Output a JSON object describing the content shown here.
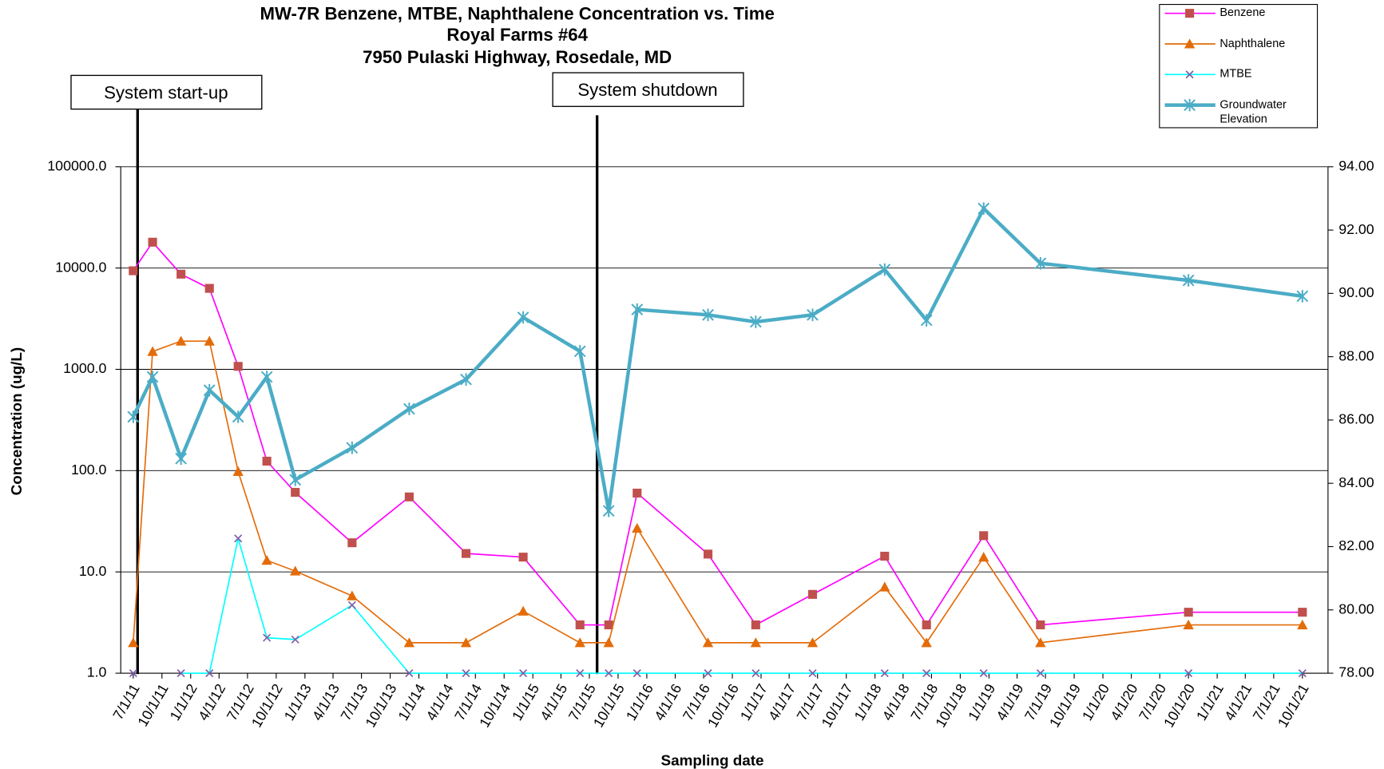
{
  "chart_data": {
    "type": "line",
    "title": [
      "MW-7R Benzene, MTBE, Naphthalene Concentration vs. Time",
      "Royal Farms #64",
      "7950 Pulaski Highway, Rosedale, MD"
    ],
    "xlabel": "Sampling date",
    "ylabel": "Concentration (ug/L)",
    "annotations": [
      "System start-up",
      "System shutdown"
    ],
    "y_scale": "log",
    "grid": true,
    "legend": "top-right",
    "xlim": [
      "5/22/11",
      "12/22/21"
    ],
    "xticks": [
      "7/1/11",
      "10/1/11",
      "1/1/12",
      "4/1/12",
      "7/1/12",
      "10/1/12",
      "1/1/13",
      "4/1/13",
      "7/1/13",
      "10/1/13",
      "1/1/14",
      "4/1/14",
      "7/1/14",
      "10/1/14",
      "1/1/15",
      "4/1/15",
      "7/1/15",
      "10/1/15",
      "1/1/16",
      "4/1/16",
      "7/1/16",
      "10/1/16",
      "1/1/17",
      "4/1/17",
      "7/1/17",
      "10/1/17",
      "1/1/18",
      "4/1/18",
      "7/1/18",
      "10/1/18",
      "1/1/19",
      "4/1/19",
      "7/1/19",
      "10/1/19",
      "1/1/20",
      "4/1/20",
      "7/1/20",
      "10/1/20",
      "1/1/21",
      "4/1/21",
      "7/1/21",
      "10/1/21"
    ],
    "ylim": [
      1,
      100000
    ],
    "yticks": [
      {
        "value": 1,
        "label": "1.0"
      },
      {
        "value": 10,
        "label": "10.0"
      },
      {
        "value": 100,
        "label": "100.0"
      },
      {
        "value": 1000,
        "label": "1000.0"
      },
      {
        "value": 10000,
        "label": "10000.0"
      },
      {
        "value": 100000,
        "label": "100000.0"
      }
    ],
    "y2lim": [
      78,
      94
    ],
    "y2ticks": [
      {
        "value": 78,
        "label": "78.00"
      },
      {
        "value": 80,
        "label": "80.00"
      },
      {
        "value": 82,
        "label": "82.00"
      },
      {
        "value": 84,
        "label": "84.00"
      },
      {
        "value": 86,
        "label": "86.00"
      },
      {
        "value": 88,
        "label": "88.00"
      },
      {
        "value": 90,
        "label": "90.00"
      },
      {
        "value": 92,
        "label": "92.00"
      },
      {
        "value": 94,
        "label": "94.00"
      }
    ],
    "x": [
      "7/1/11",
      "9/1/11",
      "12/1/11",
      "3/1/12",
      "6/1/12",
      "9/1/12",
      "12/1/12",
      "6/1/13",
      "12/1/13",
      "6/1/14",
      "12/1/14",
      "6/1/15",
      "9/1/15",
      "12/1/15",
      "7/15/16",
      "12/15/16",
      "6/15/17",
      "2/1/18",
      "6/15/18",
      "12/15/18",
      "6/15/19",
      "10/1/20",
      "10/1/21"
    ],
    "series": [
      {
        "name": "Benzene",
        "color": "#ff00ff",
        "marker": "square",
        "marker_color": "#c0504d",
        "width": 1.5,
        "values": [
          9400,
          18000,
          8700,
          6300,
          1070,
          124,
          61,
          19.4,
          55,
          15.2,
          14,
          3,
          3,
          60,
          15,
          3,
          6,
          14.3,
          3,
          22.8,
          3,
          4,
          4
        ]
      },
      {
        "name": "Naphthalene",
        "color": "#e36c09",
        "marker": "triangle",
        "marker_color": "#e36c09",
        "width": 1.5,
        "values": [
          2,
          1500,
          1900,
          1900,
          98,
          13,
          10.2,
          5.8,
          2,
          2,
          4.1,
          2,
          2,
          27,
          2,
          2,
          2,
          7.1,
          2,
          14,
          2,
          3,
          3
        ]
      },
      {
        "name": "MTBE",
        "color": "#00ffff",
        "marker": "x",
        "marker_color": "#7f5fa8",
        "width": 1.5,
        "values": [
          1,
          null,
          1,
          1,
          21.4,
          2.24,
          2.15,
          4.7,
          1,
          1,
          1,
          1,
          1,
          1,
          1,
          1,
          1,
          1,
          1,
          1,
          1,
          1,
          1
        ]
      },
      {
        "name": "Groundwater Elevation",
        "color": "#4bacc6",
        "marker": "star",
        "marker_color": "#4bacc6",
        "width": 4,
        "axis": "y2",
        "values": [
          86.1,
          87.36,
          84.78,
          86.94,
          86.1,
          87.36,
          84.11,
          85.12,
          86.35,
          87.28,
          89.24,
          88.17,
          83.13,
          89.49,
          89.32,
          89.1,
          89.32,
          90.75,
          89.15,
          92.68,
          90.95,
          90.41,
          89.91
        ]
      }
    ]
  }
}
